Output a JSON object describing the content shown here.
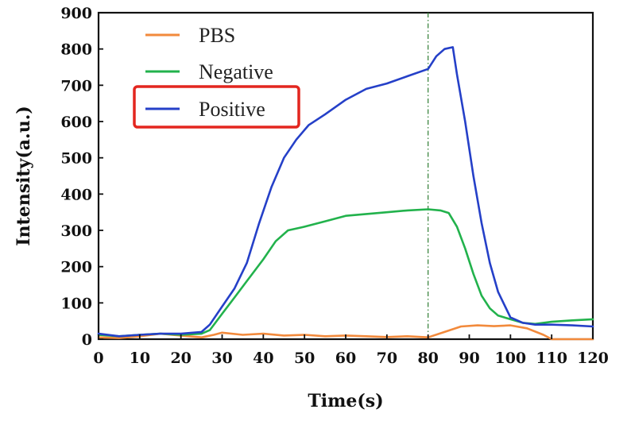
{
  "chart_data": {
    "type": "line",
    "title": "",
    "xlabel": "Time(s)",
    "ylabel": "Intensity(a.u.)",
    "xlim": [
      0,
      120
    ],
    "ylim": [
      0,
      900
    ],
    "xticks": [
      0,
      10,
      20,
      30,
      40,
      50,
      60,
      70,
      80,
      90,
      100,
      110,
      120
    ],
    "yticks": [
      0,
      100,
      200,
      300,
      400,
      500,
      600,
      700,
      800,
      900
    ],
    "vline_x": 80,
    "legend_position": "top-left",
    "highlight": "Positive",
    "series": [
      {
        "name": "PBS",
        "color": "#f28a3c",
        "x": [
          0,
          5,
          10,
          15,
          20,
          25,
          28,
          30,
          35,
          40,
          45,
          50,
          55,
          60,
          65,
          70,
          75,
          80,
          84,
          88,
          92,
          96,
          100,
          104,
          108,
          110,
          115,
          120
        ],
        "y": [
          5,
          3,
          8,
          15,
          10,
          5,
          12,
          18,
          12,
          15,
          10,
          12,
          8,
          10,
          8,
          6,
          8,
          5,
          20,
          35,
          38,
          36,
          38,
          30,
          12,
          0,
          0,
          0
        ]
      },
      {
        "name": "Negative",
        "color": "#22b24c",
        "x": [
          0,
          5,
          10,
          15,
          20,
          25,
          27,
          30,
          33,
          36,
          40,
          43,
          46,
          50,
          55,
          60,
          65,
          70,
          75,
          80,
          83,
          85,
          87,
          89,
          91,
          93,
          95,
          97,
          100,
          103,
          106,
          110,
          115,
          120
        ],
        "y": [
          12,
          8,
          12,
          15,
          12,
          15,
          25,
          70,
          115,
          160,
          220,
          270,
          300,
          310,
          325,
          340,
          345,
          350,
          355,
          358,
          355,
          348,
          310,
          250,
          180,
          120,
          85,
          65,
          55,
          45,
          42,
          48,
          52,
          55
        ]
      },
      {
        "name": "Positive",
        "color": "#2540c8",
        "x": [
          0,
          5,
          10,
          15,
          20,
          25,
          27,
          30,
          33,
          36,
          39,
          42,
          45,
          48,
          51,
          55,
          60,
          65,
          70,
          75,
          80,
          82,
          84,
          86,
          87,
          89,
          91,
          93,
          95,
          97,
          100,
          103,
          106,
          110,
          115,
          120
        ],
        "y": [
          15,
          8,
          12,
          15,
          15,
          20,
          40,
          90,
          140,
          210,
          320,
          420,
          500,
          550,
          590,
          620,
          660,
          690,
          705,
          725,
          745,
          780,
          800,
          805,
          730,
          600,
          450,
          320,
          210,
          130,
          60,
          45,
          40,
          40,
          38,
          35
        ]
      }
    ]
  }
}
